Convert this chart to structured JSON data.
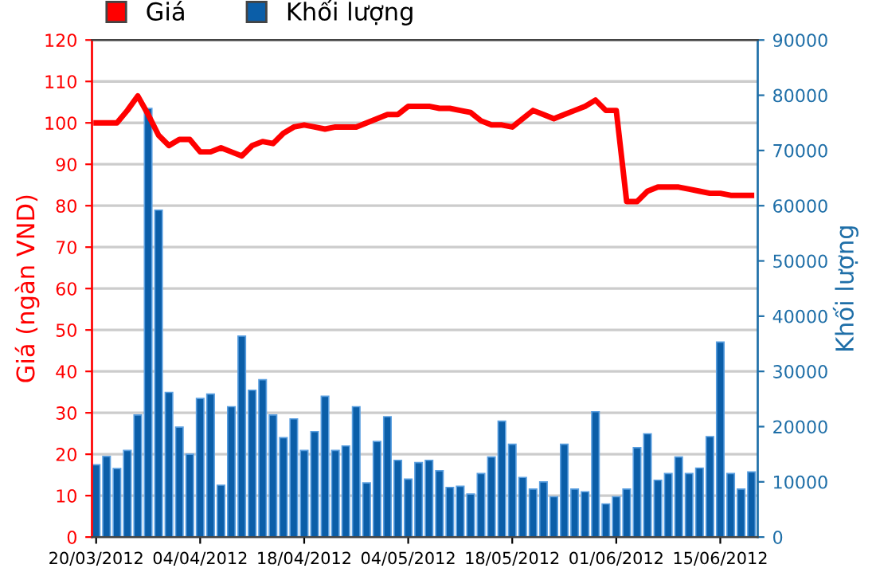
{
  "chart_data": {
    "type": "line",
    "categories": [
      "20/03/2012",
      null,
      null,
      null,
      null,
      null,
      null,
      null,
      null,
      null,
      "04/04/2012",
      null,
      null,
      null,
      null,
      null,
      null,
      null,
      null,
      null,
      "18/04/2012",
      null,
      null,
      null,
      null,
      null,
      null,
      null,
      null,
      null,
      "04/05/2012",
      null,
      null,
      null,
      null,
      null,
      null,
      null,
      null,
      null,
      "18/05/2012",
      null,
      null,
      null,
      null,
      null,
      null,
      null,
      null,
      null,
      "01/06/2012",
      null,
      null,
      null,
      null,
      null,
      null,
      null,
      null,
      null,
      "15/06/2012",
      null,
      null,
      null
    ],
    "ylabel": "Giá (ngàn VND)",
    "y2label": "Khối lượng",
    "ylim": [
      0,
      120
    ],
    "yticks": [
      0,
      10,
      20,
      30,
      40,
      50,
      60,
      70,
      80,
      90,
      100,
      110,
      120
    ],
    "y2lim": [
      0,
      90000
    ],
    "y2ticks": [
      0,
      10000,
      20000,
      30000,
      40000,
      50000,
      60000,
      70000,
      80000,
      90000
    ],
    "grid": "y",
    "legend": "top left",
    "marker": "none",
    "line_style": "solid",
    "series": [
      {
        "name": "Khối lượng",
        "type": "bar",
        "axis": "y2",
        "color": "#0b5ea8",
        "values": [
          13100,
          14600,
          12400,
          15700,
          22100,
          77600,
          59200,
          26200,
          19900,
          15000,
          25100,
          25900,
          9400,
          23600,
          36400,
          26600,
          28500,
          22100,
          18000,
          21400,
          15700,
          19100,
          25500,
          15700,
          16500,
          23600,
          9800,
          17300,
          21800,
          13900,
          10500,
          13500,
          13900,
          12000,
          9000,
          9200,
          7800,
          11500,
          14500,
          21000,
          16800,
          10800,
          8700,
          10000,
          7300,
          16800,
          8700,
          8200,
          22700,
          6000,
          7300,
          8700,
          16200,
          18700,
          10300,
          11500,
          14500,
          11500,
          12500,
          18200,
          35300,
          11500,
          8700,
          11800
        ]
      },
      {
        "name": "Giá",
        "color": "#ff0000",
        "values": [
          100,
          100,
          100,
          103,
          106.5,
          102,
          97,
          94.5,
          96,
          96,
          93,
          93,
          94,
          93,
          92,
          94.5,
          95.5,
          95,
          97.5,
          99,
          99.5,
          99,
          98.5,
          99,
          99,
          99,
          100,
          101,
          102,
          102,
          104,
          104,
          104,
          103.5,
          103.5,
          103,
          102.5,
          100.5,
          99.5,
          99.5,
          99,
          101,
          103,
          102,
          101,
          102,
          103,
          104,
          105.5,
          103,
          103,
          81,
          81,
          83.5,
          84.5,
          84.5,
          84.5,
          84,
          83.5,
          83,
          83,
          82.5,
          82.5,
          82.5
        ]
      }
    ]
  }
}
